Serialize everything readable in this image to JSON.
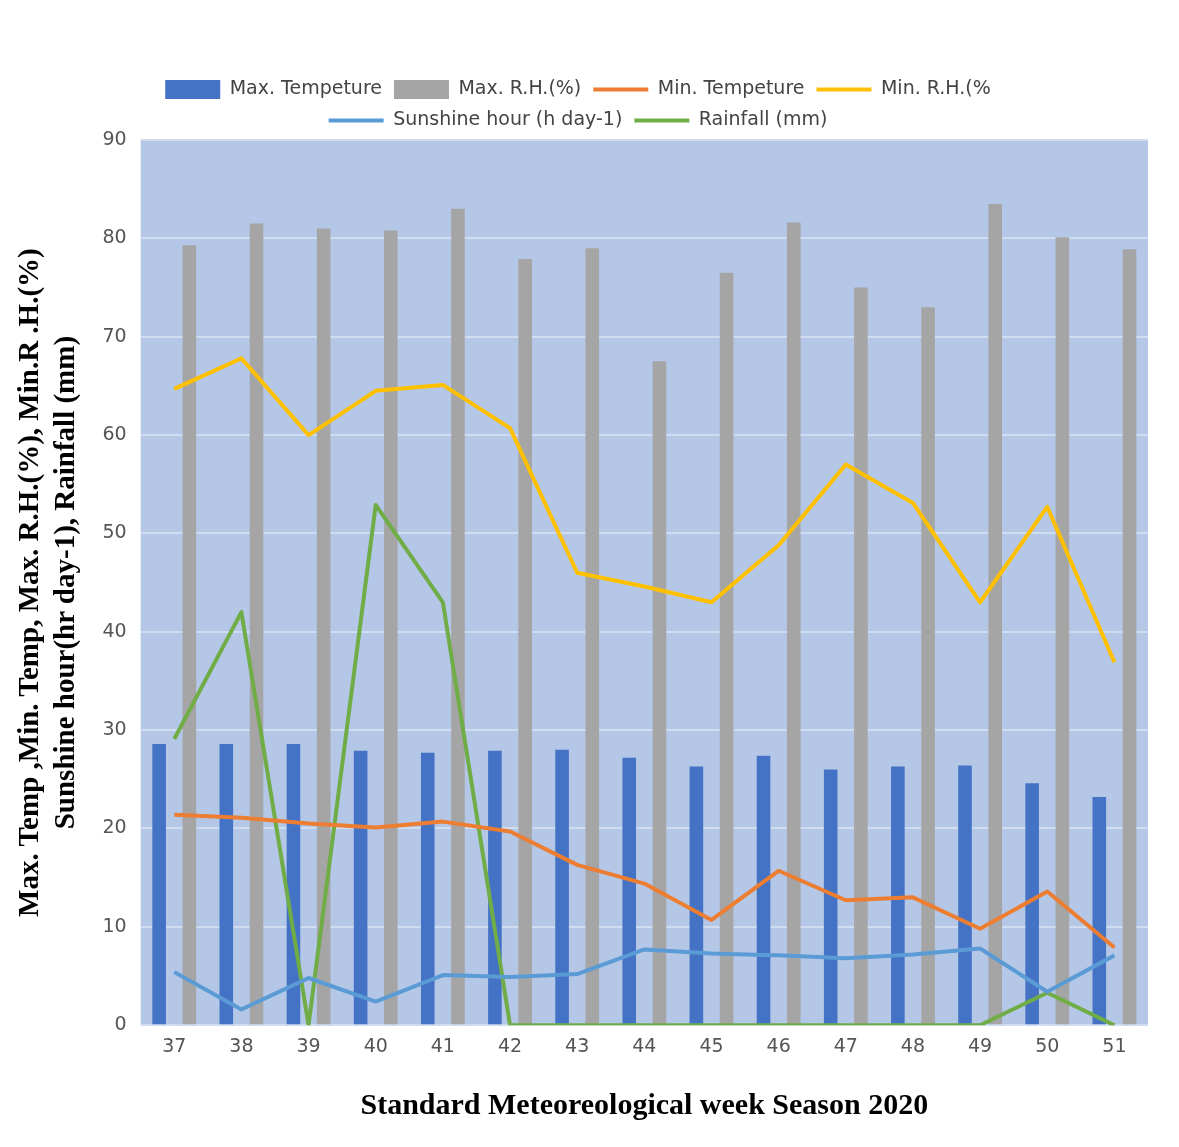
{
  "chart_data": {
    "type": "bar",
    "xlabel": "Standard Meteoreological week Season 2020",
    "ylabel": "Max. Temp ,Min. Temp, Max. R.H.(%), Min.R .H.(%)\nSunshine hour(hr day-1), Rainfall (mm)",
    "categories": [
      "37",
      "38",
      "39",
      "40",
      "41",
      "42",
      "43",
      "44",
      "45",
      "46",
      "47",
      "48",
      "49",
      "50",
      "51"
    ],
    "ylim": [
      0,
      90
    ],
    "yticks": [
      0,
      10,
      20,
      30,
      40,
      50,
      60,
      70,
      80,
      90
    ],
    "grid": "y",
    "legend": "top",
    "marker": "none",
    "series": [
      {
        "name": "Max. Tempeture",
        "color": "#4472c4",
        "values": [
          28.6,
          28.6,
          28.6,
          27.9,
          27.7,
          27.9,
          28.0,
          27.2,
          26.3,
          27.4,
          26.0,
          26.3,
          26.4,
          24.6,
          23.2
        ]
      },
      {
        "name": "Max. R.H.(%)",
        "color": "#a5a5a5",
        "values": [
          79.3,
          81.5,
          81.0,
          80.8,
          83.0,
          77.9,
          79.0,
          67.5,
          76.5,
          81.6,
          75.0,
          73.0,
          83.5,
          80.1,
          78.9
        ]
      },
      {
        "name": "Min. Tempeture",
        "type": "line",
        "color": "#ed7d31",
        "values": [
          21.4,
          21.1,
          20.5,
          20.1,
          20.7,
          19.7,
          16.3,
          14.4,
          10.7,
          15.7,
          12.7,
          13.0,
          9.8,
          13.6,
          7.9
        ]
      },
      {
        "name": "Min. R.H.(%",
        "type": "line",
        "color": "#ffc000",
        "values": [
          64.7,
          67.8,
          60.0,
          64.5,
          65.1,
          60.7,
          46.0,
          44.6,
          43.0,
          48.8,
          57.0,
          53.1,
          43.0,
          52.7,
          36.9
        ]
      },
      {
        "name": "Sunshine hour (h day-1)",
        "type": "line",
        "color": "#5b9bd5",
        "values": [
          5.4,
          1.6,
          4.8,
          2.4,
          5.1,
          4.9,
          5.2,
          7.7,
          7.3,
          7.1,
          6.8,
          7.2,
          7.8,
          3.4,
          7.1
        ]
      },
      {
        "name": "Rainfall (mm)",
        "type": "line",
        "color": "#70ad47",
        "values": [
          29.1,
          42.0,
          0,
          52.9,
          43.0,
          0,
          0,
          0,
          0,
          0,
          0,
          0,
          0,
          3.3,
          0
        ]
      }
    ]
  }
}
